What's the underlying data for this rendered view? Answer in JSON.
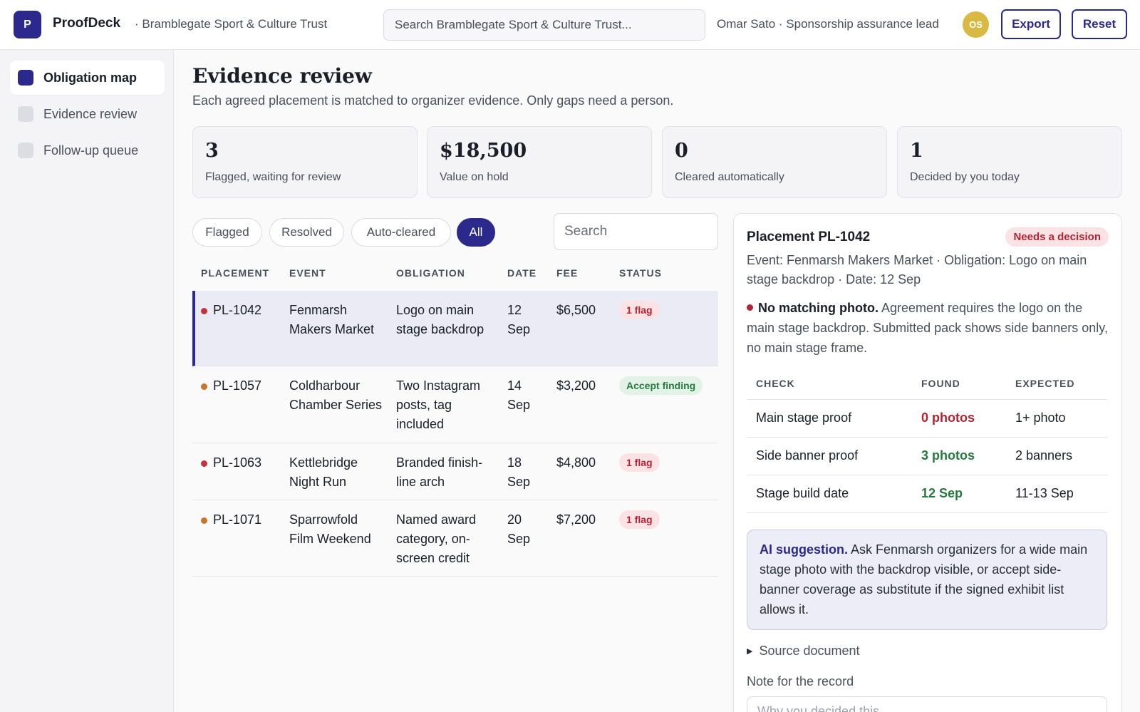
{
  "app": {
    "logo_letter": "P",
    "name": "ProofDeck",
    "org": "· Bramblegate Sport & Culture Trust",
    "search_placeholder": "Search Bramblegate Sport & Culture Trust...",
    "user_text": "Omar Sato · Sponsorship assurance lead",
    "avatar_initials": "OS",
    "export_label": "Export",
    "reset_label": "Reset",
    "brand_color": "#2b2a8c"
  },
  "sidebar": {
    "items": [
      {
        "label": "Obligation map",
        "active": true
      },
      {
        "label": "Evidence review",
        "active": false
      },
      {
        "label": "Follow-up queue",
        "active": false
      }
    ]
  },
  "main": {
    "title": "Evidence review",
    "subtitle": "Each agreed placement is matched to organizer evidence. Only gaps need a person.",
    "stats": [
      {
        "value": "3",
        "label": "Flagged, waiting for review"
      },
      {
        "value": "$18,500",
        "label": "Value on hold"
      },
      {
        "value": "0",
        "label": "Cleared automatically"
      },
      {
        "value": "1",
        "label": "Decided by you today"
      }
    ],
    "filters": [
      {
        "label": "Flagged",
        "active": false
      },
      {
        "label": "Resolved",
        "active": false
      },
      {
        "label": "Auto-cleared",
        "active": false
      },
      {
        "label": "All",
        "active": true
      }
    ],
    "list_search_placeholder": "Search",
    "table": {
      "headers": [
        "PLACEMENT",
        "EVENT",
        "OBLIGATION",
        "DATE",
        "FEE",
        "STATUS"
      ],
      "rows": [
        {
          "id": "PL-1042",
          "event": "Fenmarsh Makers Market",
          "obligation": "Logo on main stage backdrop",
          "date": "12 Sep",
          "fee": "$6,500",
          "status": "1 flag",
          "dot_color": "#c0343f"
        },
        {
          "id": "PL-1057",
          "event": "Coldharbour Chamber Series",
          "obligation": "Two Instagram posts, tag included",
          "date": "14 Sep",
          "fee": "$3,200",
          "status": "Accept finding",
          "dot_color": "#c8762c"
        },
        {
          "id": "PL-1063",
          "event": "Kettlebridge Night Run",
          "obligation": "Branded finish-line arch",
          "date": "18 Sep",
          "fee": "$4,800",
          "status": "1 flag",
          "dot_color": "#c0343f"
        },
        {
          "id": "PL-1071",
          "event": "Sparrowfold Film Weekend",
          "obligation": "Named award category, on-screen credit",
          "date": "20 Sep",
          "fee": "$7,200",
          "status": "1 flag",
          "dot_color": "#c8762c"
        }
      ]
    }
  },
  "detail": {
    "title": "Placement PL-1042",
    "badge": "Needs a decision",
    "meta": "Event: Fenmarsh Makers Market · Obligation: Logo on main stage backdrop · Date: 12 Sep",
    "finding_head": "No matching photo.",
    "finding_text": " Agreement requires the logo on the main stage backdrop. Submitted pack shows side banners only, no main stage frame.",
    "checks": {
      "headers": [
        "CHECK",
        "FOUND",
        "EXPECTED"
      ],
      "rows": [
        {
          "check": "Main stage proof",
          "found": "0 photos",
          "expected": "1+ photo"
        },
        {
          "check": "Side banner proof",
          "found": "3 photos",
          "expected": "2 banners"
        },
        {
          "check": "Stage build date",
          "found": "12 Sep",
          "expected": "11-13 Sep"
        }
      ]
    },
    "ai_head": "AI suggestion.",
    "ai_text": " Ask Fenmarsh organizers for a wide main stage photo with the backdrop visible, or accept side-banner coverage as substitute if the signed exhibit list allows it.",
    "source_label": "Source document",
    "note_label": "Note for the record",
    "note_placeholder": "Why you decided this..."
  }
}
